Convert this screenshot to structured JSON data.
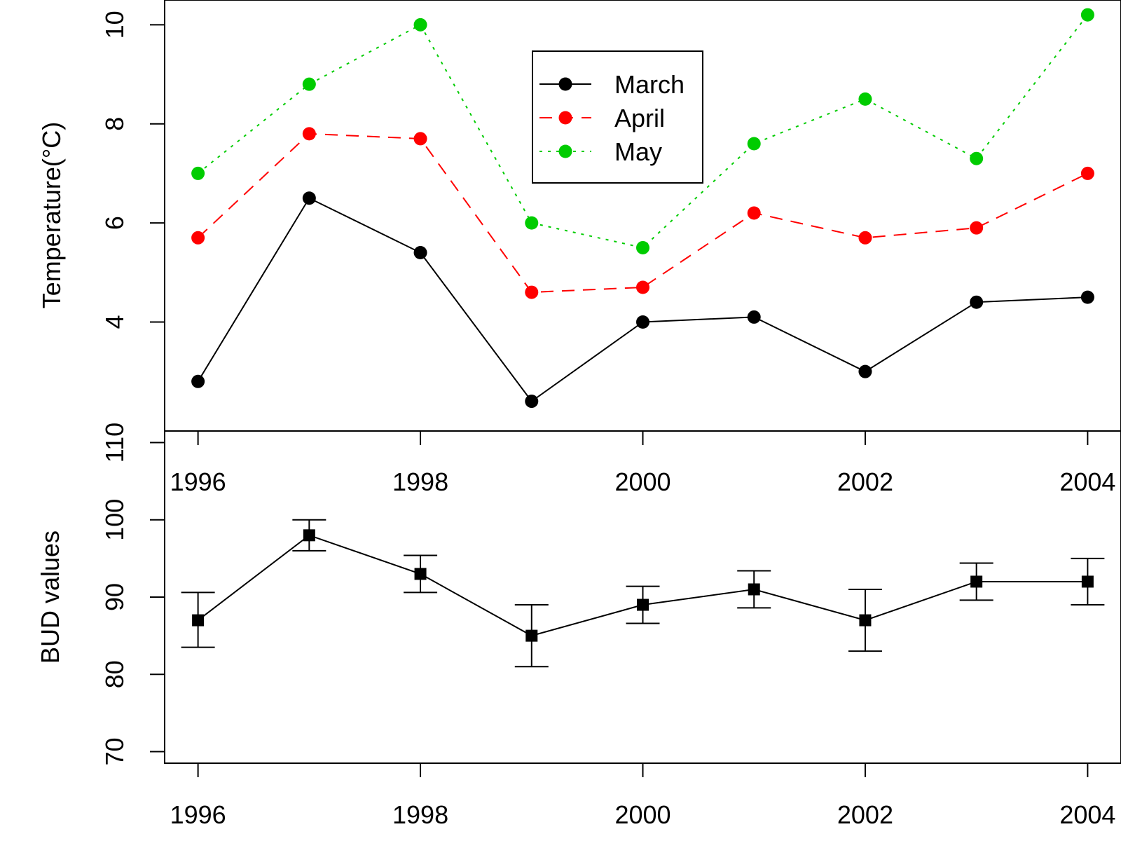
{
  "chart_data": [
    {
      "type": "line",
      "ylabel": "Temperature(°C)",
      "x": [
        1996,
        1997,
        1998,
        1999,
        2000,
        2001,
        2002,
        2003,
        2004
      ],
      "x_ticks": [
        "1996",
        "1998",
        "2000",
        "2002",
        "2004"
      ],
      "y_ticks": [
        "4",
        "6",
        "8",
        "10"
      ],
      "xlim": [
        1995.7,
        2004.3
      ],
      "ylim": [
        1.8,
        10.5
      ],
      "legend_position": "top-center",
      "series": [
        {
          "name": "March",
          "color": "#000000",
          "line_style": "solid",
          "values": [
            2.8,
            6.5,
            5.4,
            2.4,
            4.0,
            4.1,
            3.0,
            4.4,
            4.5
          ]
        },
        {
          "name": "April",
          "color": "#ff0000",
          "line_style": "dashed",
          "values": [
            5.7,
            7.8,
            7.7,
            4.6,
            4.7,
            6.2,
            5.7,
            5.9,
            7.0
          ]
        },
        {
          "name": "May",
          "color": "#00cc00",
          "line_style": "dotted",
          "values": [
            7.0,
            8.8,
            10.0,
            6.0,
            5.5,
            7.6,
            8.5,
            7.3,
            10.2
          ]
        }
      ]
    },
    {
      "type": "line",
      "ylabel": "BUD values",
      "x": [
        1996,
        1997,
        1998,
        1999,
        2000,
        2001,
        2002,
        2003,
        2004
      ],
      "x_ticks": [
        "1996",
        "1998",
        "2000",
        "2002",
        "2004"
      ],
      "y_ticks": [
        "70",
        "80",
        "90",
        "100",
        "110"
      ],
      "xlim": [
        1995.7,
        2004.3
      ],
      "ylim": [
        68.5,
        111.5
      ],
      "marker": "square",
      "color": "#000000",
      "values": [
        87,
        98,
        93,
        85,
        89,
        91,
        87,
        92,
        92
      ],
      "error_low": [
        83.5,
        96.0,
        90.6,
        81.0,
        86.6,
        88.6,
        83.0,
        89.6,
        89.0
      ],
      "error_high": [
        90.6,
        100.0,
        95.4,
        89.0,
        91.4,
        93.4,
        91.0,
        94.4,
        95.0
      ]
    }
  ]
}
